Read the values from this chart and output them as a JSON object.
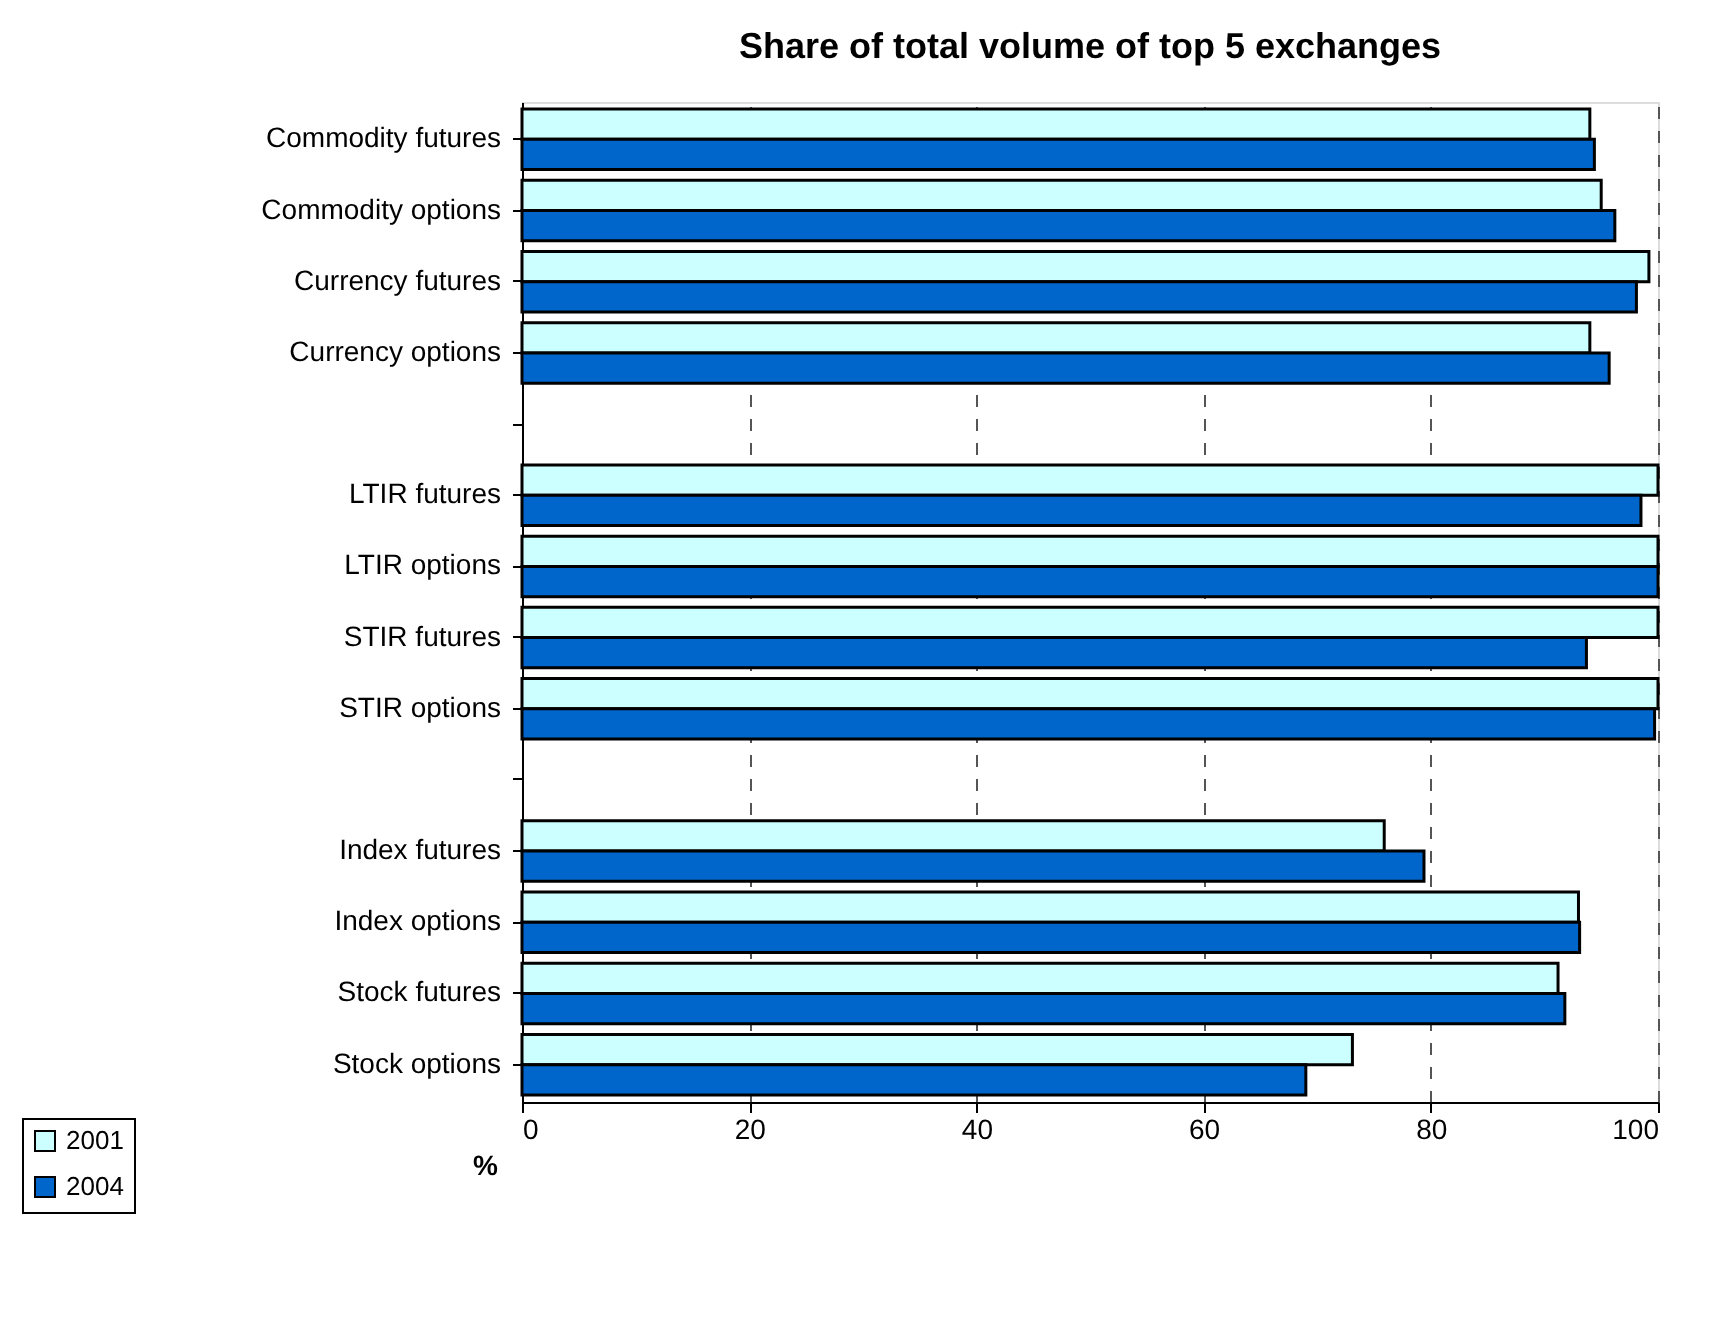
{
  "chart_data": {
    "type": "bar",
    "orientation": "horizontal",
    "title": "Share of total volume of top 5 exchanges",
    "xlabel": "%",
    "categories": [
      "Commodity futures",
      "Commodity options",
      "Currency futures",
      "Currency options",
      null,
      "LTIR futures",
      "LTIR options",
      "STIR futures",
      "STIR options",
      null,
      "Index futures",
      "Index options",
      "Stock futures",
      "Stock options"
    ],
    "series": [
      {
        "name": "2001",
        "color": "#ccffff",
        "values": [
          94.0,
          95.0,
          99.2,
          94.0,
          null,
          100,
          100,
          100,
          100,
          null,
          75.9,
          93.0,
          91.2,
          73.1
        ]
      },
      {
        "name": "2004",
        "color": "#0066cc",
        "values": [
          94.4,
          96.2,
          98.1,
          95.7,
          null,
          98.5,
          100,
          93.7,
          99.7,
          null,
          79.4,
          93.1,
          91.8,
          69.0
        ]
      }
    ],
    "xlim": [
      0,
      100
    ],
    "xticks": [
      0,
      20,
      40,
      60,
      80,
      100
    ],
    "grid": "x",
    "legend": "bottom left"
  }
}
